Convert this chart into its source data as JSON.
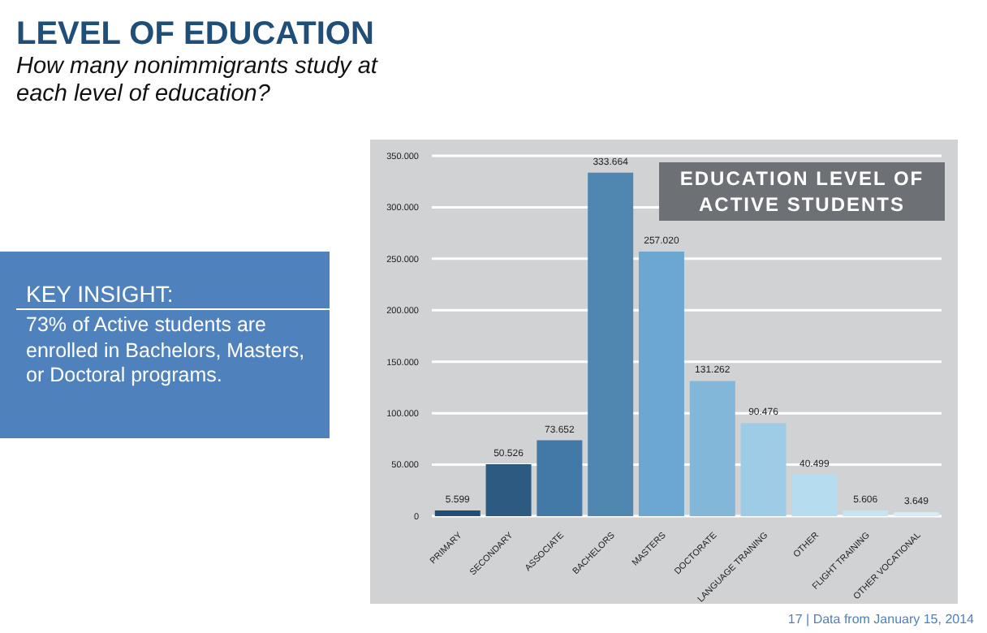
{
  "chart_data": {
    "type": "bar",
    "title": "LEVEL OF EDUCATION",
    "subtitle": "How many nonimmigrants study at each level of education?",
    "annotations": [
      "EDUCATION LEVEL OF ACTIVE STUDENTS",
      "KEY INSIGHT:",
      "73% of Active students are enrolled in Bachelors, Masters, or Doctoral programs.",
      "17  |  Data from January 15, 2014"
    ],
    "categories": [
      "PRIMARY",
      "SECONDARY",
      "ASSOCIATE",
      "BACHELORS",
      "MASTERS",
      "DOCTORATE",
      "LANGUAGE TRAINING",
      "OTHER",
      "FLIGHT TRAINING",
      "OTHER VOCATIONAL"
    ],
    "values": [
      5599,
      50526,
      73652,
      333664,
      257020,
      131262,
      90476,
      40499,
      5606,
      3649
    ],
    "value_labels": [
      "5.599",
      "50.526",
      "73.652",
      "333.664",
      "257.020",
      "131.262",
      "90.476",
      "40.499",
      "5.606",
      "3.649"
    ],
    "colors": [
      "#1f4e79",
      "#2c5a80",
      "#4279a6",
      "#4f87b0",
      "#6ba7d1",
      "#82b7d9",
      "#9ecce7",
      "#b5dcef",
      "#c6e5f4",
      "#d5ecf7"
    ],
    "ylim": [
      0,
      350000
    ],
    "yticks": [
      0,
      {
        "value": 50000,
        "label": "50.000"
      },
      {
        "value": 100000,
        "label": "100.000"
      },
      {
        "value": 150000,
        "label": "150.000"
      },
      {
        "value": 200000,
        "label": "200.000"
      },
      {
        "value": 250000,
        "label": "250.000"
      },
      {
        "value": 300000,
        "label": "300.000"
      },
      {
        "value": 350000,
        "label": "350.000"
      }
    ],
    "grid": "y"
  }
}
